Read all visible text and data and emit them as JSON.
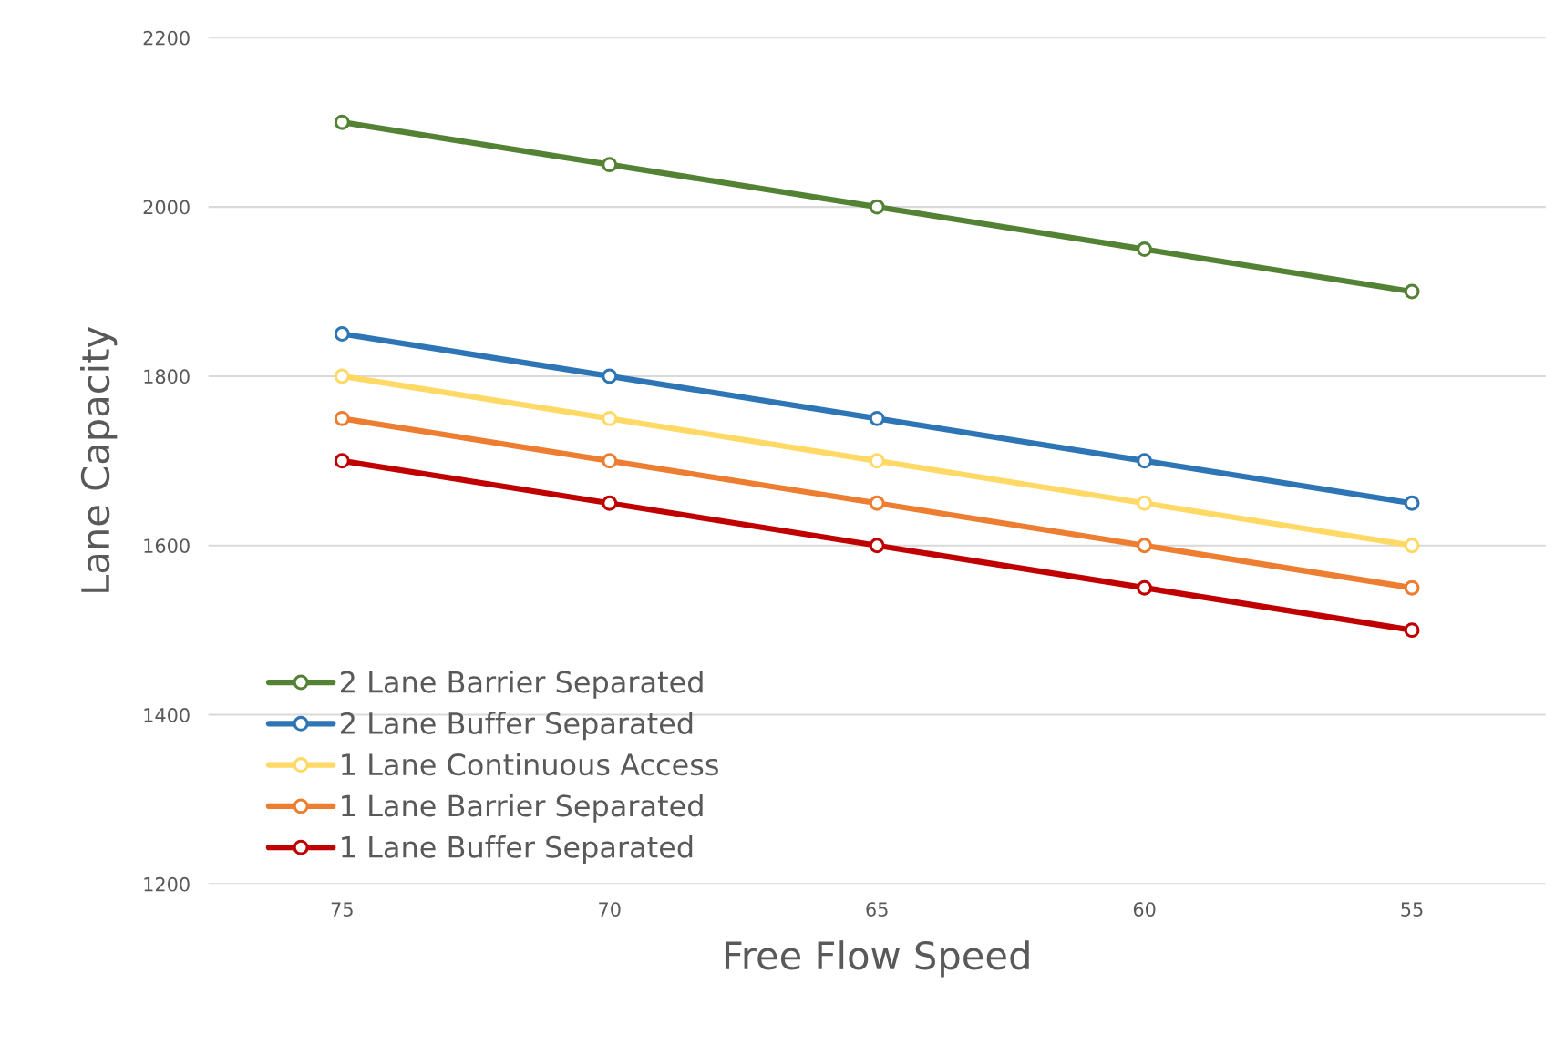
{
  "chart_data": {
    "type": "line",
    "xlabel": "Free Flow Speed",
    "ylabel": "Lane Capacity",
    "categories": [
      "75",
      "70",
      "65",
      "60",
      "55"
    ],
    "ylim": [
      1200,
      2200
    ],
    "yticks": [
      1200,
      1400,
      1600,
      1800,
      2000,
      2200
    ],
    "grid": "y",
    "legend": "bottom left",
    "marker": "circle",
    "line_style": "solid",
    "series": [
      {
        "name": "2 Lane Barrier Separated",
        "color": "#548235",
        "values": [
          2100,
          2050,
          2000,
          1950,
          1900
        ]
      },
      {
        "name": "2 Lane Buffer Separated",
        "color": "#2e75b6",
        "values": [
          1850,
          1800,
          1750,
          1700,
          1650
        ]
      },
      {
        "name": "1 Lane Continuous Access",
        "color": "#ffd966",
        "values": [
          1800,
          1750,
          1700,
          1650,
          1600
        ]
      },
      {
        "name": "1 Lane Barrier Separated",
        "color": "#ed7d31",
        "values": [
          1750,
          1700,
          1650,
          1600,
          1550
        ]
      },
      {
        "name": "1 Lane Buffer Separated",
        "color": "#c00000",
        "values": [
          1700,
          1650,
          1600,
          1550,
          1500
        ]
      }
    ]
  }
}
